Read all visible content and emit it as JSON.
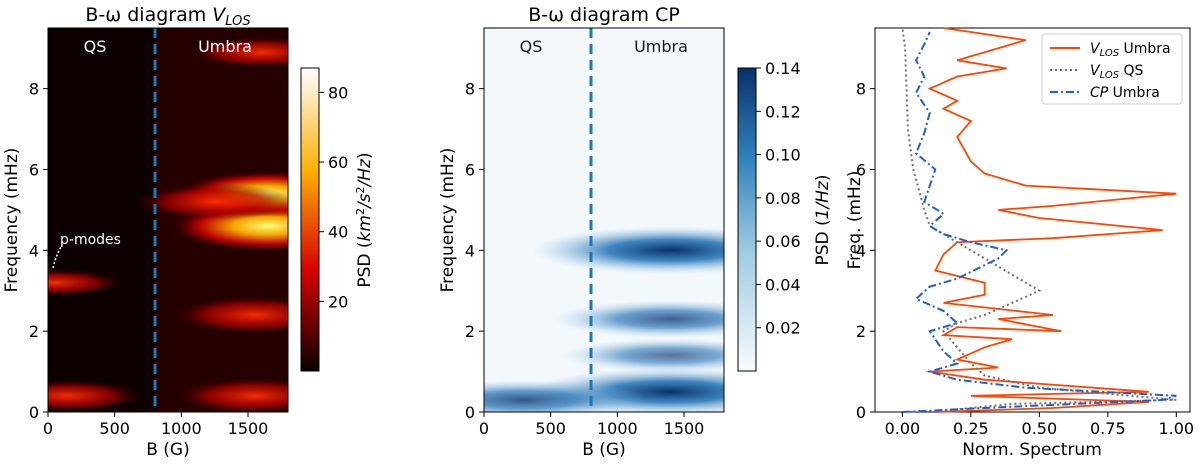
{
  "chart_data": [
    {
      "type": "heatmap",
      "title": "B-ω diagram V_LOS",
      "xlabel": "B (G)",
      "ylabel": "Frequency (mHz)",
      "xlim": [
        0,
        1800
      ],
      "ylim": [
        0,
        9.5
      ],
      "xticks": [
        "0",
        "500",
        "1000",
        "1500"
      ],
      "yticks": [
        "0",
        "2",
        "4",
        "6",
        "8"
      ],
      "colormap": "hot",
      "colorbar_label": "PSD (km²/s²/Hz)",
      "colorbar_range": [
        0,
        87
      ],
      "colorbar_ticks": [
        "20",
        "40",
        "60",
        "80"
      ],
      "divider_B": 800,
      "divider_color": "#1f77b4",
      "region_labels": [
        "QS",
        "Umbra"
      ],
      "annotation": "p-modes",
      "blobs": [
        {
          "B": 1650,
          "f": 4.6,
          "value": 85
        },
        {
          "B": 1650,
          "f": 5.4,
          "value": 70
        },
        {
          "B": 1250,
          "f": 5.2,
          "value": 45
        },
        {
          "B": 1550,
          "f": 2.4,
          "value": 50
        },
        {
          "B": 1550,
          "f": 0.4,
          "value": 45
        },
        {
          "B": 150,
          "f": 0.4,
          "value": 35
        },
        {
          "B": 50,
          "f": 3.2,
          "value": 20
        },
        {
          "B": 1600,
          "f": 8.9,
          "value": 30
        }
      ]
    },
    {
      "type": "heatmap",
      "title": "B-ω diagram CP",
      "xlabel": "B (G)",
      "ylabel": "Frequency (mHz)",
      "xlim": [
        0,
        1800
      ],
      "ylim": [
        0,
        9.5
      ],
      "xticks": [
        "0",
        "500",
        "1000",
        "1500"
      ],
      "yticks": [
        "0",
        "2",
        "4",
        "6",
        "8"
      ],
      "colormap": "Blues",
      "colorbar_label": "PSD (1/Hz)",
      "colorbar_range": [
        0,
        0.14
      ],
      "colorbar_ticks": [
        "0.02",
        "0.04",
        "0.06",
        "0.08",
        "0.10",
        "0.12",
        "0.14"
      ],
      "divider_B": 800,
      "divider_color": "#1f77b4",
      "region_labels": [
        "QS",
        "Umbra"
      ],
      "blobs": [
        {
          "B": 1400,
          "f": 0.5,
          "value": 0.14
        },
        {
          "B": 1400,
          "f": 4.0,
          "value": 0.14
        },
        {
          "B": 1400,
          "f": 2.3,
          "value": 0.09
        },
        {
          "B": 1400,
          "f": 1.4,
          "value": 0.07
        },
        {
          "B": 300,
          "f": 0.3,
          "value": 0.1
        }
      ]
    },
    {
      "type": "line",
      "xlabel": "Norm. Spectrum",
      "ylabel": "Freq. (mHz)",
      "xlim": [
        -0.1,
        1.05
      ],
      "ylim": [
        0,
        9.5
      ],
      "xticks": [
        "0.00",
        "0.25",
        "0.50",
        "0.75",
        "1.00"
      ],
      "yticks": [
        "0",
        "2",
        "4",
        "6",
        "8"
      ],
      "legend_position": "top-right",
      "series": [
        {
          "name": "V_LOS Umbra",
          "color": "#ff4500",
          "style": "solid",
          "points": [
            [
              0.12,
              0
            ],
            [
              0.55,
              0.1
            ],
            [
              0.9,
              0.25
            ],
            [
              0.25,
              0.4
            ],
            [
              0.9,
              0.5
            ],
            [
              0.3,
              0.8
            ],
            [
              0.1,
              1.0
            ],
            [
              0.35,
              1.1
            ],
            [
              0.2,
              1.3
            ],
            [
              0.3,
              1.6
            ],
            [
              0.4,
              1.8
            ],
            [
              0.15,
              1.9
            ],
            [
              0.2,
              2.1
            ],
            [
              0.58,
              2.0
            ],
            [
              0.35,
              2.3
            ],
            [
              0.55,
              2.4
            ],
            [
              0.15,
              2.7
            ],
            [
              0.3,
              2.9
            ],
            [
              0.3,
              3.2
            ],
            [
              0.12,
              3.5
            ],
            [
              0.15,
              3.9
            ],
            [
              0.2,
              4.2
            ],
            [
              0.55,
              4.3
            ],
            [
              0.95,
              4.5
            ],
            [
              0.5,
              4.8
            ],
            [
              0.35,
              5.0
            ],
            [
              0.55,
              5.1
            ],
            [
              1.0,
              5.4
            ],
            [
              0.45,
              5.6
            ],
            [
              0.3,
              5.9
            ],
            [
              0.25,
              6.2
            ],
            [
              0.2,
              6.8
            ],
            [
              0.25,
              7.2
            ],
            [
              0.15,
              7.5
            ],
            [
              0.2,
              7.7
            ],
            [
              0.1,
              8.0
            ],
            [
              0.2,
              8.3
            ],
            [
              0.38,
              8.5
            ],
            [
              0.2,
              8.7
            ],
            [
              0.3,
              8.9
            ],
            [
              0.45,
              9.2
            ],
            [
              0.15,
              9.5
            ]
          ]
        },
        {
          "name": "V_LOS QS",
          "color": "#707070",
          "style": "dotted",
          "points": [
            [
              0.1,
              0
            ],
            [
              0.4,
              0.2
            ],
            [
              1.0,
              0.3
            ],
            [
              0.5,
              0.6
            ],
            [
              0.3,
              0.9
            ],
            [
              0.25,
              1.2
            ],
            [
              0.2,
              1.6
            ],
            [
              0.15,
              2.0
            ],
            [
              0.2,
              2.2
            ],
            [
              0.3,
              2.4
            ],
            [
              0.4,
              2.7
            ],
            [
              0.5,
              3.0
            ],
            [
              0.4,
              3.4
            ],
            [
              0.3,
              3.8
            ],
            [
              0.2,
              4.2
            ],
            [
              0.1,
              4.6
            ],
            [
              0.08,
              5.0
            ],
            [
              0.06,
              5.5
            ],
            [
              0.04,
              6.0
            ],
            [
              0.03,
              6.5
            ],
            [
              0.02,
              7.0
            ],
            [
              0.015,
              8.0
            ],
            [
              0.01,
              9.0
            ],
            [
              0.0,
              9.5
            ]
          ]
        },
        {
          "name": "CP Umbra",
          "color": "#1f5fd6",
          "style": "dashdot",
          "points": [
            [
              0.0,
              0
            ],
            [
              0.3,
              0.1
            ],
            [
              0.95,
              0.3
            ],
            [
              1.0,
              0.4
            ],
            [
              0.45,
              0.6
            ],
            [
              0.2,
              0.8
            ],
            [
              0.1,
              1.0
            ],
            [
              0.2,
              1.2
            ],
            [
              0.15,
              1.5
            ],
            [
              0.12,
              1.8
            ],
            [
              0.1,
              2.0
            ],
            [
              0.2,
              2.2
            ],
            [
              0.15,
              2.5
            ],
            [
              0.05,
              2.8
            ],
            [
              0.1,
              3.1
            ],
            [
              0.2,
              3.3
            ],
            [
              0.35,
              3.8
            ],
            [
              0.38,
              4.0
            ],
            [
              0.25,
              4.2
            ],
            [
              0.15,
              4.4
            ],
            [
              0.1,
              4.6
            ],
            [
              0.15,
              4.9
            ],
            [
              0.08,
              5.2
            ],
            [
              0.1,
              5.6
            ],
            [
              0.12,
              6.0
            ],
            [
              0.05,
              6.4
            ],
            [
              0.08,
              6.9
            ],
            [
              0.1,
              7.4
            ],
            [
              0.05,
              7.9
            ],
            [
              0.08,
              8.3
            ],
            [
              0.05,
              8.7
            ],
            [
              0.08,
              9.1
            ],
            [
              0.1,
              9.4
            ]
          ]
        }
      ]
    }
  ]
}
